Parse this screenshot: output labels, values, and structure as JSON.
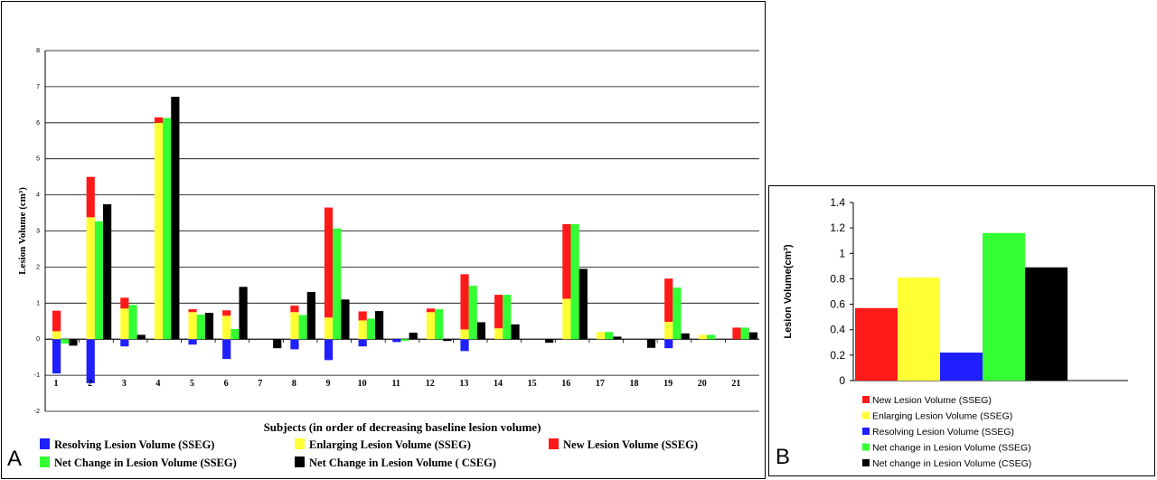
{
  "panels": {
    "a_label": "A",
    "b_label": "B"
  },
  "colors": {
    "resolving": "#1f1fff",
    "enlarging": "#ffff33",
    "new": "#ff1a1a",
    "net_sseg": "#33ff33",
    "net_cseg": "#000000"
  },
  "chart_data": [
    {
      "type": "bar",
      "stacked_groups": true,
      "title": "",
      "xlabel": "Subjects (in order of decreasing baseline lesion volume)",
      "ylabel": "Lesion Volume (cm³)",
      "ylim": [
        -2,
        8
      ],
      "yticks": [
        "-2",
        "-1",
        "0",
        "1",
        "2",
        "3",
        "4",
        "5",
        "6",
        "7",
        "8"
      ],
      "grid": true,
      "categories": [
        "1",
        "2",
        "3",
        "4",
        "5",
        "6",
        "7",
        "8",
        "9",
        "10",
        "11",
        "12",
        "13",
        "14",
        "15",
        "16",
        "17",
        "18",
        "19",
        "20",
        "21"
      ],
      "series": [
        {
          "name": "Resolving Lesion Volume (SSEG)",
          "key": "resolving",
          "values": [
            -0.95,
            -1.22,
            -0.2,
            0,
            -0.15,
            -0.55,
            0,
            -0.28,
            -0.58,
            -0.2,
            -0.08,
            0,
            -0.33,
            0,
            0,
            0,
            0,
            0,
            -0.25,
            0,
            0
          ]
        },
        {
          "name": "Enlarging Lesion Volume (SSEG)",
          "key": "enlarging",
          "values": [
            0.22,
            3.38,
            0.85,
            6.0,
            0.75,
            0.65,
            0,
            0.75,
            0.6,
            0.52,
            0,
            0.75,
            0.27,
            0.3,
            0,
            1.12,
            0.2,
            0,
            0.48,
            0.12,
            0
          ]
        },
        {
          "name": "New Lesion Volume (SSEG)",
          "key": "new",
          "values": [
            0.57,
            1.12,
            0.3,
            0.15,
            0.08,
            0.15,
            0,
            0.18,
            3.05,
            0.25,
            0,
            0.1,
            1.53,
            0.93,
            0,
            2.07,
            0,
            0,
            1.2,
            0,
            0.32
          ]
        },
        {
          "name": "Net Change in Lesion Volume (SSEG)",
          "key": "net_sseg",
          "values": [
            -0.12,
            3.27,
            0.95,
            6.13,
            0.68,
            0.28,
            0,
            0.67,
            3.07,
            0.57,
            -0.05,
            0.83,
            1.48,
            1.23,
            0,
            3.19,
            0.2,
            0,
            1.43,
            0.12,
            0.32
          ]
        },
        {
          "name": "Net Change in Lesion Volume ( CSEG)",
          "key": "net_cseg",
          "values": [
            -0.18,
            3.74,
            0.12,
            6.72,
            0.73,
            1.45,
            -0.25,
            1.31,
            1.1,
            0.78,
            0.18,
            -0.05,
            0.47,
            0.41,
            -0.1,
            1.95,
            0.07,
            -0.24,
            0.16,
            0,
            0.19
          ]
        }
      ],
      "legend_position": "bottom",
      "legend_order": [
        "resolving",
        "enlarging",
        "new",
        "net_sseg",
        "net_cseg"
      ]
    },
    {
      "type": "bar",
      "title": "",
      "xlabel": "",
      "ylabel": "Lesion Volume(cm³)",
      "ylim": [
        0,
        1.4
      ],
      "yticks": [
        "0",
        "0.2",
        "0.4",
        "0.6",
        "0.8",
        "1",
        "1.2",
        "1.4"
      ],
      "grid": false,
      "series": [
        {
          "name": "New Lesion Volume (SSEG)",
          "key": "new",
          "value": 0.57
        },
        {
          "name": "Enlarging Lesion Volume (SSEG)",
          "key": "enlarging",
          "value": 0.81
        },
        {
          "name": "Resolving Lesion Volume (SSEG)",
          "key": "resolving",
          "value": 0.22
        },
        {
          "name": "Net change in Lesion Volume (SSEG)",
          "key": "net_sseg",
          "value": 1.16
        },
        {
          "name": "Net change in Lesion Volume (CSEG)",
          "key": "net_cseg",
          "value": 0.89
        }
      ],
      "legend_position": "bottom"
    }
  ]
}
